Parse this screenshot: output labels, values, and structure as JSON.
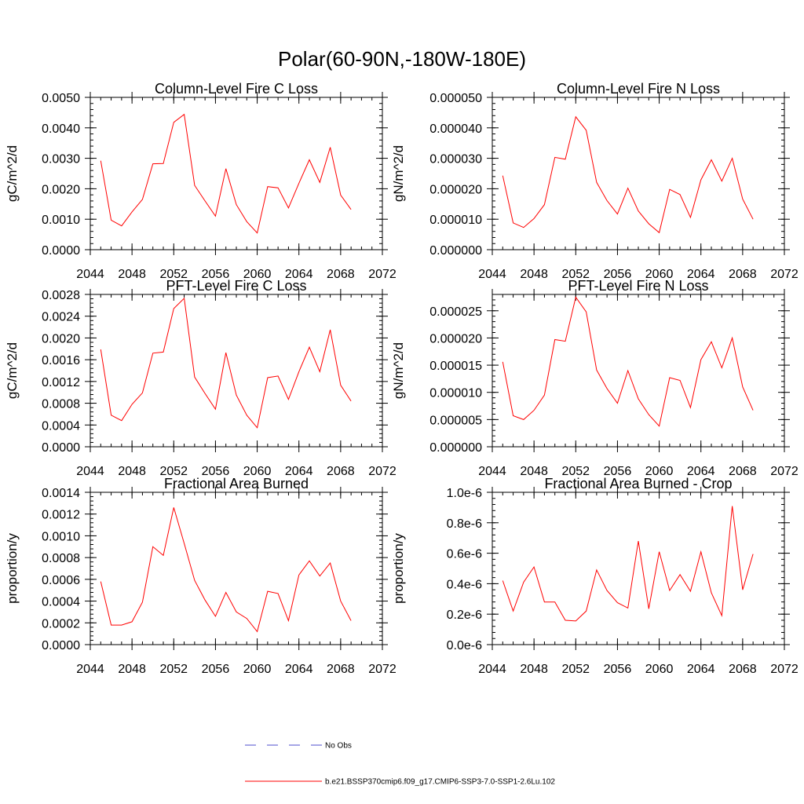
{
  "figure": {
    "title": "Polar(60-90N,-180W-180E)",
    "colors": {
      "model": "#ff0000",
      "obs": "#4d4dcc",
      "axes": "#000000"
    }
  },
  "legend": {
    "placement": "bottom-center",
    "entries": [
      {
        "label": "No Obs",
        "style": "dashed",
        "color": "#4d4dcc"
      },
      {
        "label": "b.e21.BSSP370cmip6.f09_g17.CMIP6-SSP3-7.0-SSP1-2.6Lu.102",
        "style": "solid",
        "color": "#ff0000"
      }
    ]
  },
  "chart_data": [
    {
      "type": "line",
      "title": "Column-Level Fire C Loss",
      "ylabel": "gC/m^2/d",
      "xlim": [
        2044,
        2072
      ],
      "ylim": [
        0,
        0.005
      ],
      "xticks": [
        2044,
        2048,
        2052,
        2056,
        2060,
        2064,
        2068,
        2072
      ],
      "xtick_labels": [
        "2044",
        "2048",
        "2052",
        "2056",
        "2060",
        "2064",
        "2068",
        "2072"
      ],
      "yticks": [
        0,
        0.001,
        0.002,
        0.003,
        0.004,
        0.005
      ],
      "ytick_labels": [
        "0.0000",
        "0.0010",
        "0.0020",
        "0.0030",
        "0.0040",
        "0.0050"
      ],
      "x": [
        2045,
        2046,
        2047,
        2048,
        2049,
        2050,
        2051,
        2052,
        2053,
        2054,
        2055,
        2056,
        2057,
        2058,
        2059,
        2060,
        2061,
        2062,
        2063,
        2064,
        2065,
        2066,
        2067,
        2068,
        2069
      ],
      "values": [
        0.00292,
        0.00097,
        0.00078,
        0.00124,
        0.00165,
        0.00282,
        0.00283,
        0.00418,
        0.00444,
        0.00211,
        0.0016,
        0.0011,
        0.00266,
        0.00148,
        0.00092,
        0.00055,
        0.00207,
        0.00203,
        0.00137,
        0.00218,
        0.00295,
        0.00221,
        0.00336,
        0.00179,
        0.00132
      ]
    },
    {
      "type": "line",
      "title": "Column-Level Fire N Loss",
      "ylabel": "gN/m^2/d",
      "xlim": [
        2044,
        2072
      ],
      "ylim": [
        0,
        5e-05
      ],
      "xticks": [
        2044,
        2048,
        2052,
        2056,
        2060,
        2064,
        2068,
        2072
      ],
      "xtick_labels": [
        "2044",
        "2048",
        "2052",
        "2056",
        "2060",
        "2064",
        "2068",
        "2072"
      ],
      "yticks": [
        0,
        1e-05,
        2e-05,
        3e-05,
        4e-05,
        5e-05
      ],
      "ytick_labels": [
        "0.000000",
        "0.000010",
        "0.000020",
        "0.000030",
        "0.000040",
        "0.000050"
      ],
      "x": [
        2045,
        2046,
        2047,
        2048,
        2049,
        2050,
        2051,
        2052,
        2053,
        2054,
        2055,
        2056,
        2057,
        2058,
        2059,
        2060,
        2061,
        2062,
        2063,
        2064,
        2065,
        2066,
        2067,
        2068,
        2069
      ],
      "values": [
        2.43e-05,
        8.8e-06,
        7.3e-06,
        1.02e-05,
        1.48e-05,
        3.03e-05,
        2.97e-05,
        4.36e-05,
        3.92e-05,
        2.21e-05,
        1.61e-05,
        1.17e-05,
        2.02e-05,
        1.27e-05,
        8.5e-06,
        5.6e-06,
        1.98e-05,
        1.81e-05,
        1.06e-05,
        2.29e-05,
        2.95e-05,
        2.25e-05,
        3e-05,
        1.66e-05,
        1e-05
      ]
    },
    {
      "type": "line",
      "title": "PFT-Level Fire C Loss",
      "ylabel": "gC/m^2/d",
      "xlim": [
        2044,
        2072
      ],
      "ylim": [
        0,
        0.0028
      ],
      "xticks": [
        2044,
        2048,
        2052,
        2056,
        2060,
        2064,
        2068,
        2072
      ],
      "xtick_labels": [
        "2044",
        "2048",
        "2052",
        "2056",
        "2060",
        "2064",
        "2068",
        "2072"
      ],
      "yticks": [
        0,
        0.0004,
        0.0008,
        0.0012,
        0.0016,
        0.002,
        0.0024,
        0.0028
      ],
      "ytick_labels": [
        "0.0000",
        "0.0004",
        "0.0008",
        "0.0012",
        "0.0016",
        "0.0020",
        "0.0024",
        "0.0028"
      ],
      "x": [
        2045,
        2046,
        2047,
        2048,
        2049,
        2050,
        2051,
        2052,
        2053,
        2054,
        2055,
        2056,
        2057,
        2058,
        2059,
        2060,
        2061,
        2062,
        2063,
        2064,
        2065,
        2066,
        2067,
        2068,
        2069
      ],
      "values": [
        0.00179,
        0.00058,
        0.00048,
        0.00078,
        0.00099,
        0.00172,
        0.00174,
        0.00254,
        0.00273,
        0.00128,
        0.00098,
        0.00069,
        0.00173,
        0.00095,
        0.00058,
        0.00035,
        0.00127,
        0.0013,
        0.00087,
        0.00138,
        0.00183,
        0.00138,
        0.00215,
        0.00113,
        0.00084
      ]
    },
    {
      "type": "line",
      "title": "PFT-Level Fire N Loss",
      "ylabel": "gN/m^2/d",
      "xlim": [
        2044,
        2072
      ],
      "ylim": [
        0,
        2.8e-05
      ],
      "xticks": [
        2044,
        2048,
        2052,
        2056,
        2060,
        2064,
        2068,
        2072
      ],
      "xtick_labels": [
        "2044",
        "2048",
        "2052",
        "2056",
        "2060",
        "2064",
        "2068",
        "2072"
      ],
      "yticks": [
        0,
        5e-06,
        1e-05,
        1.5e-05,
        2e-05,
        2.5e-05
      ],
      "ytick_labels": [
        "0.000000",
        "0.000005",
        "0.000010",
        "0.000015",
        "0.000020",
        "0.000025"
      ],
      "x": [
        2045,
        2046,
        2047,
        2048,
        2049,
        2050,
        2051,
        2052,
        2053,
        2054,
        2055,
        2056,
        2057,
        2058,
        2059,
        2060,
        2061,
        2062,
        2063,
        2064,
        2065,
        2066,
        2067,
        2068,
        2069
      ],
      "values": [
        1.56e-05,
        5.7e-06,
        5e-06,
        6.7e-06,
        9.5e-06,
        1.97e-05,
        1.94e-05,
        2.75e-05,
        2.48e-05,
        1.41e-05,
        1.07e-05,
        8e-06,
        1.4e-05,
        8.8e-06,
        5.9e-06,
        3.8e-06,
        1.27e-05,
        1.22e-05,
        7.2e-06,
        1.6e-05,
        1.93e-05,
        1.45e-05,
        2e-05,
        1.1e-05,
        6.7e-06
      ]
    },
    {
      "type": "line",
      "title": "Fractional Area Burned",
      "ylabel": "proportion/y",
      "xlim": [
        2044,
        2072
      ],
      "ylim": [
        0,
        0.0014
      ],
      "xticks": [
        2044,
        2048,
        2052,
        2056,
        2060,
        2064,
        2068,
        2072
      ],
      "xtick_labels": [
        "2044",
        "2048",
        "2052",
        "2056",
        "2060",
        "2064",
        "2068",
        "2072"
      ],
      "yticks": [
        0,
        0.0002,
        0.0004,
        0.0006,
        0.0008,
        0.001,
        0.0012,
        0.0014
      ],
      "ytick_labels": [
        "0.0000",
        "0.0002",
        "0.0004",
        "0.0006",
        "0.0008",
        "0.0010",
        "0.0012",
        "0.0014"
      ],
      "x": [
        2045,
        2046,
        2047,
        2048,
        2049,
        2050,
        2051,
        2052,
        2053,
        2054,
        2055,
        2056,
        2057,
        2058,
        2059,
        2060,
        2061,
        2062,
        2063,
        2064,
        2065,
        2066,
        2067,
        2068,
        2069
      ],
      "values": [
        0.00058,
        0.00018,
        0.00018,
        0.00021,
        0.00039,
        0.0009,
        0.00082,
        0.00126,
        0.00093,
        0.00059,
        0.00041,
        0.00026,
        0.00048,
        0.0003,
        0.00024,
        0.00012,
        0.00049,
        0.00047,
        0.00022,
        0.00064,
        0.00077,
        0.00063,
        0.00075,
        0.0004,
        0.00022
      ]
    },
    {
      "type": "line",
      "title": "Fractional Area Burned - Crop",
      "ylabel": "proportion/y",
      "xlim": [
        2044,
        2072
      ],
      "ylim": [
        0,
        1e-06
      ],
      "xticks": [
        2044,
        2048,
        2052,
        2056,
        2060,
        2064,
        2068,
        2072
      ],
      "xtick_labels": [
        "2044",
        "2048",
        "2052",
        "2056",
        "2060",
        "2064",
        "2068",
        "2072"
      ],
      "yticks": [
        0,
        2e-07,
        4e-07,
        6e-07,
        8e-07,
        1e-06
      ],
      "ytick_labels": [
        "0.0e-6",
        "0.2e-6",
        "0.4e-6",
        "0.6e-6",
        "0.8e-6",
        "1.0e-6"
      ],
      "x": [
        2045,
        2046,
        2047,
        2048,
        2049,
        2050,
        2051,
        2052,
        2053,
        2054,
        2055,
        2056,
        2057,
        2058,
        2059,
        2060,
        2061,
        2062,
        2063,
        2064,
        2065,
        2066,
        2067,
        2068,
        2069
      ],
      "values": [
        4.2e-07,
        2.2e-07,
        4.1e-07,
        5.1e-07,
        2.8e-07,
        2.8e-07,
        1.6e-07,
        1.55e-07,
        2.2e-07,
        4.9e-07,
        3.55e-07,
        2.75e-07,
        2.4e-07,
        6.8e-07,
        2.35e-07,
        6.1e-07,
        3.55e-07,
        4.6e-07,
        3.5e-07,
        6.1e-07,
        3.4e-07,
        1.9e-07,
        9.1e-07,
        3.6e-07,
        5.95e-07
      ]
    }
  ]
}
